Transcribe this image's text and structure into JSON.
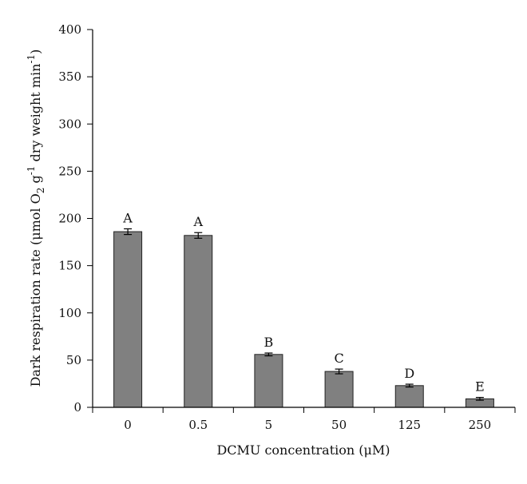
{
  "chart_data": {
    "type": "bar",
    "categories": [
      "0",
      "0.5",
      "5",
      "50",
      "125",
      "250"
    ],
    "values": [
      186,
      182,
      56,
      38,
      23,
      9
    ],
    "errors": [
      3,
      3,
      1.5,
      2.5,
      1.5,
      1.5
    ],
    "significance": [
      "A",
      "A",
      "B",
      "C",
      "D",
      "E"
    ],
    "ylim": [
      0,
      400
    ],
    "yticks": [
      0,
      50,
      100,
      150,
      200,
      250,
      300,
      350,
      400
    ],
    "xlabel": "DCMU concentration (μM)",
    "ylabel": "Dark respiration rate (μmol O",
    "ylabel_sub": "2",
    "ylabel_mid": " g",
    "ylabel_sup1": "-1",
    "ylabel_end": " dry weight min",
    "ylabel_sup2": "-1",
    "ylabel_close": ")",
    "bar_color": "#808080",
    "grid": false
  }
}
